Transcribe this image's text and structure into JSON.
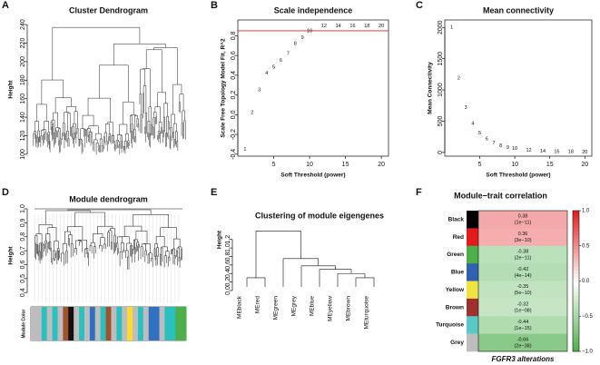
{
  "chart_data": [
    {
      "type": "dendrogram",
      "label": "A",
      "title": "Cluster Dendrogram",
      "ylabel": "Height",
      "ylim": [
        95,
        245
      ],
      "yticks": [
        100,
        120,
        140,
        160,
        180,
        200,
        220,
        240
      ],
      "color": "#222222"
    },
    {
      "type": "scatter",
      "label": "B",
      "title": "Scale independence",
      "xlabel": "Soft Threshold (power)",
      "ylabel": "Scale Free Topology Model Fit, R^2",
      "x": [
        1,
        2,
        3,
        4,
        5,
        6,
        7,
        8,
        9,
        10,
        12,
        14,
        16,
        18,
        20
      ],
      "values": [
        -0.35,
        0.02,
        0.25,
        0.42,
        0.48,
        0.55,
        0.62,
        0.72,
        0.78,
        0.85,
        0.9,
        0.9,
        0.9,
        0.9,
        0.9
      ],
      "color": "#e41a1c",
      "xlim": [
        0,
        21
      ],
      "xticks": [
        5,
        10,
        15,
        20
      ],
      "ylim": [
        -0.42,
        0.96
      ],
      "yticks": [
        -0.4,
        -0.2,
        {
          "value": 0,
          "label": "0.0"
        },
        0.2,
        0.4,
        0.6,
        0.8
      ],
      "threshold": 0.85
    },
    {
      "type": "scatter",
      "label": "C",
      "title": "Mean connectivity",
      "xlabel": "Soft Threshold (power)",
      "ylabel": "Mean Connectivity",
      "x": [
        1,
        2,
        3,
        4,
        5,
        6,
        7,
        8,
        9,
        10,
        12,
        14,
        16,
        18,
        20
      ],
      "values": [
        2000,
        1190,
        720,
        460,
        310,
        215,
        150,
        110,
        80,
        60,
        35,
        22,
        15,
        10,
        8
      ],
      "color": "#e41a1c",
      "xlim": [
        0,
        21
      ],
      "xticks": [
        5,
        10,
        15,
        20
      ],
      "ylim": [
        -60,
        2120
      ],
      "yticks": [
        0,
        500,
        1000,
        1500,
        2000
      ]
    },
    {
      "type": "dendrogram",
      "label": "D",
      "title": "Module dendrogram",
      "ylabel": "Height",
      "colorbar_label": "Module Color",
      "ylim": [
        0.33,
        1.0
      ],
      "yticks": [
        0.4,
        0.5,
        0.6,
        0.7,
        0.8,
        0.9,
        {
          "value": 1,
          "label": "1.0"
        }
      ],
      "color": "#111111",
      "module_colors": [
        "#bdbdbd",
        "#bdbdbd",
        "#2bbfc0",
        "#bdbdbd",
        "#2bbfc0",
        "#bdbdbd",
        "#a0522d",
        "#111111",
        "#bdbdbd",
        "#2bbfc0",
        "#bdbdbd",
        "#3070c0",
        "#bdbdbd",
        "#2bbfc0",
        "#a0522d",
        "#bdbdbd",
        "#2bbfc0",
        "#bdbdbd",
        "#ffd92f",
        "#bdbdbd",
        "#2bbfc0",
        "#bdbdbd",
        "#3070c0",
        "#3070c0",
        "#bdbdbd",
        "#2bbfc0",
        "#2bbfc0",
        "#4daf4a",
        "#4daf4a"
      ]
    },
    {
      "type": "tree",
      "label": "E",
      "title": "Clustering of module eigengenes",
      "ylabel": "Height",
      "leaves": [
        "MEblack",
        "MEred",
        "MEgreen",
        "MEgrey",
        "MEblue",
        "MEyellow",
        "MEbrown",
        "MEturquoise"
      ],
      "merges": [
        [
          0,
          1,
          0.3
        ],
        [
          6,
          7,
          0.3
        ],
        [
          5,
          9,
          0.4
        ],
        [
          4,
          10,
          0.5
        ],
        [
          3,
          11,
          0.58
        ],
        [
          2,
          12,
          0.75
        ],
        [
          8,
          13,
          1.4
        ]
      ],
      "ylim": [
        0,
        1.45
      ],
      "yticks": [
        {
          "value": 0,
          "label": "0.0"
        },
        0.2,
        0.4,
        0.6,
        0.8,
        {
          "value": 1,
          "label": "1.0"
        },
        1.2
      ]
    },
    {
      "type": "heatmap",
      "label": "F",
      "title": "Module−trait correlation",
      "xlabel": "FGFR3 alterations",
      "categories": [
        "Black",
        "Red",
        "Green",
        "Blue",
        "Yellow",
        "Brown",
        "Turquoise",
        "Grey"
      ],
      "row_colors": [
        "#000000",
        "#e41a1c",
        "#4daf4a",
        "#3060b0",
        "#f0e442",
        "#a03030",
        "#5bc8c8",
        "#bdbdbd"
      ],
      "values": [
        0.38,
        0.36,
        -0.38,
        -0.42,
        -0.35,
        -0.32,
        -0.44,
        -0.66
      ],
      "pvalues": [
        "(1e−11)",
        "(3e−10)",
        "(2e−11)",
        "(4e−14)",
        "(5e−10)",
        "(1e−08)",
        "(1e−15)",
        "(2e−38)"
      ],
      "ylim": [
        -1,
        1
      ],
      "yticks": [
        {
          "value": -1,
          "label": "−1.0"
        },
        {
          "value": -0.5,
          "label": "−0.5"
        },
        {
          "value": 0,
          "label": "0.0"
        },
        0.5,
        {
          "value": 1,
          "label": "1.0"
        }
      ],
      "low_color": "#4daf4a",
      "mid_color": "#ffffff",
      "high_color": "#e41a1c"
    }
  ]
}
